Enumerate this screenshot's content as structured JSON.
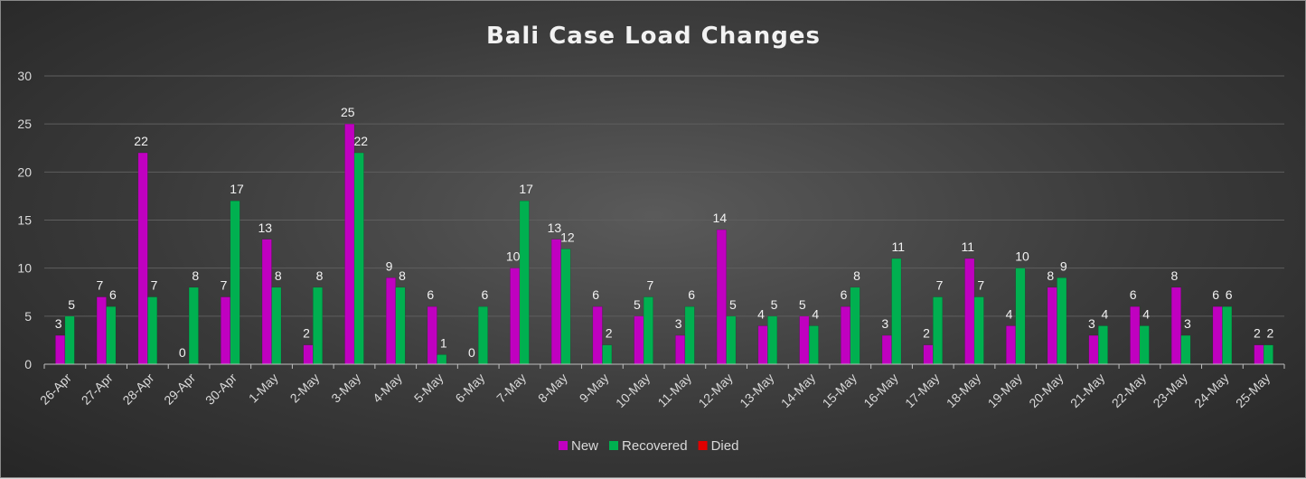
{
  "chart_data": {
    "type": "bar",
    "title": "Bali Case Load Changes",
    "xlabel": "",
    "ylabel": "",
    "ylim": [
      0,
      30
    ],
    "yticks": [
      0,
      5,
      10,
      15,
      20,
      25,
      30
    ],
    "grid": true,
    "legend_position": "bottom",
    "categories": [
      "26-Apr",
      "27-Apr",
      "28-Apr",
      "29-Apr",
      "30-Apr",
      "1-May",
      "2-May",
      "3-May",
      "4-May",
      "5-May",
      "6-May",
      "7-May",
      "8-May",
      "9-May",
      "10-May",
      "11-May",
      "12-May",
      "13-May",
      "14-May",
      "15-May",
      "16-May",
      "17-May",
      "18-May",
      "19-May",
      "20-May",
      "21-May",
      "22-May",
      "23-May",
      "24-May",
      "25-May"
    ],
    "series": [
      {
        "name": "New",
        "color": "#c000c0",
        "values": [
          3,
          7,
          22,
          0,
          7,
          13,
          2,
          25,
          9,
          6,
          0,
          10,
          13,
          6,
          5,
          3,
          14,
          4,
          5,
          6,
          3,
          2,
          11,
          4,
          8,
          3,
          6,
          8,
          6,
          2
        ]
      },
      {
        "name": "Recovered",
        "color": "#00b050",
        "values": [
          5,
          6,
          7,
          8,
          17,
          8,
          8,
          22,
          8,
          1,
          6,
          17,
          12,
          2,
          7,
          6,
          5,
          5,
          4,
          8,
          11,
          7,
          7,
          10,
          9,
          4,
          4,
          3,
          6,
          2
        ]
      },
      {
        "name": "Died",
        "color": "#e00000",
        "values": [
          null,
          null,
          null,
          null,
          null,
          null,
          null,
          null,
          null,
          null,
          null,
          null,
          null,
          null,
          null,
          null,
          null,
          null,
          null,
          null,
          null,
          null,
          null,
          null,
          null,
          null,
          null,
          null,
          null,
          null
        ]
      }
    ]
  }
}
